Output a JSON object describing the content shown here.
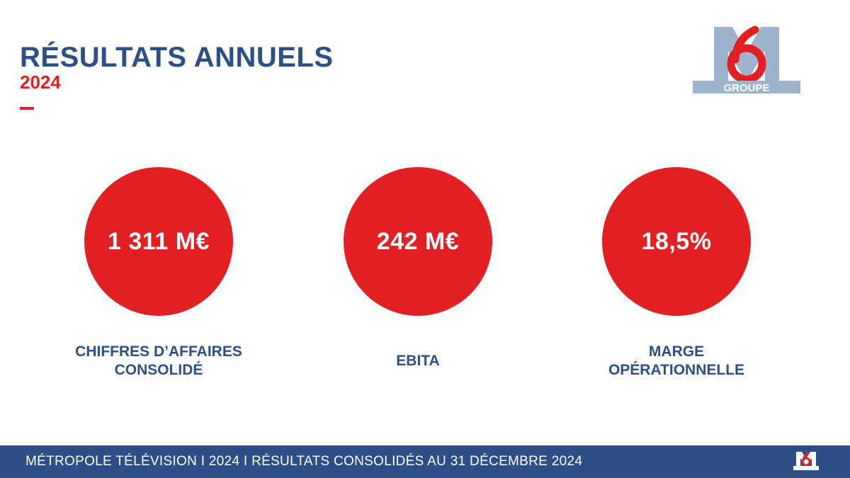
{
  "header": {
    "title": "RÉSULTATS ANNUELS",
    "subtitle": "2024"
  },
  "logo": {
    "icon": "m6-groupe-logo",
    "number": "6",
    "text": "GROUPE"
  },
  "kpis": [
    {
      "value": "1 311 M€",
      "label_line1": "CHIFFRES D’AFFAIRES",
      "label_line2": "CONSOLIDÉ"
    },
    {
      "value": "242 M€",
      "label_line1": "EBITA",
      "label_line2": ""
    },
    {
      "value": "18,5%",
      "label_line1": "MARGE",
      "label_line2": "OPÉRATIONNELLE"
    }
  ],
  "footer": {
    "text": "MÉTROPOLE TÉLÉVISION I 2024 I RÉSULTATS CONSOLIDÉS AU 31 DÉCEMBRE 2024",
    "logo_icon": "m6-groupe-logo-small"
  },
  "colors": {
    "brand_blue": "#2b4f86",
    "brand_red": "#e21f23",
    "logo_grey": "#9fb3cc"
  }
}
